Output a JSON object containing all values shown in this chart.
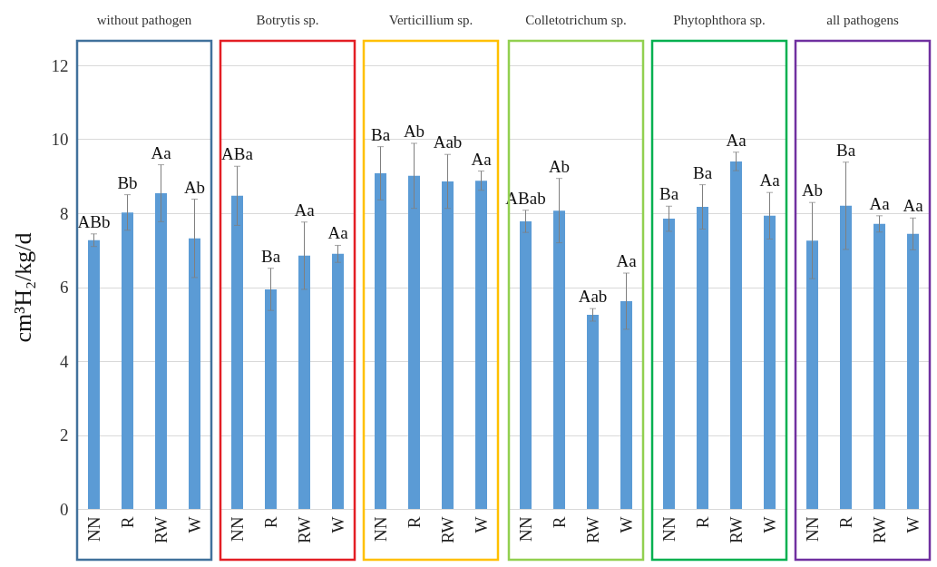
{
  "chart_data": [
    {
      "type": "bar",
      "title": "without pathogen",
      "ylabel": "cm³H₂/kg/d",
      "categories": [
        "NN",
        "R",
        "RW",
        "W"
      ],
      "values": [
        7.27,
        8.02,
        8.54,
        7.32
      ],
      "errors": [
        0.17,
        0.48,
        0.77,
        1.06
      ],
      "value_labels": [
        "ABb",
        "Bb",
        "Aa",
        "Ab"
      ],
      "color": "#5b9bd5",
      "ylim": [
        0,
        12
      ],
      "yticks": [
        0,
        2,
        4,
        6,
        8,
        10,
        12
      ],
      "grid": "y"
    },
    {
      "type": "bar",
      "title": "Botrytis sp.",
      "categories": [
        "NN",
        "R",
        "RW",
        "W"
      ],
      "values": [
        8.47,
        5.94,
        6.85,
        6.9
      ],
      "errors": [
        0.8,
        0.57,
        0.91,
        0.23
      ],
      "value_labels": [
        "ABa",
        "Ba",
        "Aa",
        "Aa"
      ],
      "color": "#5b9bd5",
      "ylim": [
        0,
        12
      ],
      "yticks": [
        0,
        2,
        4,
        6,
        8,
        10,
        12
      ],
      "grid": "y",
      "tick_labels": "x"
    },
    {
      "type": "bar",
      "title": "Verticillium sp.",
      "categories": [
        "NN",
        "R",
        "RW",
        "W"
      ],
      "values": [
        9.08,
        9.01,
        8.86,
        8.88
      ],
      "errors": [
        0.72,
        0.88,
        0.73,
        0.26
      ],
      "value_labels": [
        "Ba",
        "Ab",
        "Aab",
        "Aa"
      ],
      "color": "#5b9bd5",
      "ylim": [
        0,
        12
      ],
      "yticks": [
        0,
        2,
        4,
        6,
        8,
        10,
        12
      ],
      "grid": "y",
      "tick_labels": "x"
    },
    {
      "type": "bar",
      "title": "Colletotrichum sp.",
      "categories": [
        "NN",
        "R",
        "RW",
        "W"
      ],
      "values": [
        7.78,
        8.07,
        5.25,
        5.62
      ],
      "errors": [
        0.3,
        0.87,
        0.17,
        0.76
      ],
      "value_labels": [
        "ABab",
        "Ab",
        "Aab",
        "Aa"
      ],
      "color": "#5b9bd5",
      "ylim": [
        0,
        12
      ],
      "yticks": [
        0,
        2,
        4,
        6,
        8,
        10,
        12
      ],
      "grid": "y",
      "tick_labels": "x"
    },
    {
      "type": "bar",
      "title": "Phytophthora sp.",
      "categories": [
        "NN",
        "R",
        "RW",
        "W"
      ],
      "values": [
        7.85,
        8.17,
        9.4,
        7.93
      ],
      "errors": [
        0.34,
        0.6,
        0.25,
        0.63
      ],
      "value_labels": [
        "Ba",
        "Ba",
        "Aa",
        "Aa"
      ],
      "color": "#5b9bd5",
      "ylim": [
        0,
        12
      ],
      "yticks": [
        0,
        2,
        4,
        6,
        8,
        10,
        12
      ],
      "grid": "y",
      "tick_labels": "x"
    },
    {
      "type": "bar",
      "title": "all pathogens",
      "categories": [
        "NN",
        "R",
        "RW",
        "W"
      ],
      "values": [
        7.26,
        8.2,
        7.71,
        7.44
      ],
      "errors": [
        1.03,
        1.18,
        0.22,
        0.43
      ],
      "value_labels": [
        "Ab",
        "Ba",
        "Aa",
        "Aa"
      ],
      "color": "#5b9bd5",
      "ylim": [
        0,
        12
      ],
      "yticks": [
        0,
        2,
        4,
        6,
        8,
        10,
        12
      ],
      "grid": "y",
      "tick_labels": "x"
    }
  ]
}
